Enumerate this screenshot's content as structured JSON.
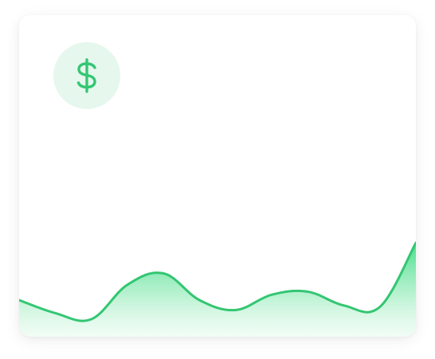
{
  "card": {
    "icon": "dollar-icon",
    "accent_color": "#3ecf7d",
    "icon_bg_color": "#e6f7ee"
  },
  "sparkline": {
    "type": "area",
    "values": [
      0.25,
      0.08,
      0.0,
      0.45,
      0.6,
      0.25,
      0.12,
      0.32,
      0.36,
      0.18,
      0.16,
      1.0
    ]
  }
}
